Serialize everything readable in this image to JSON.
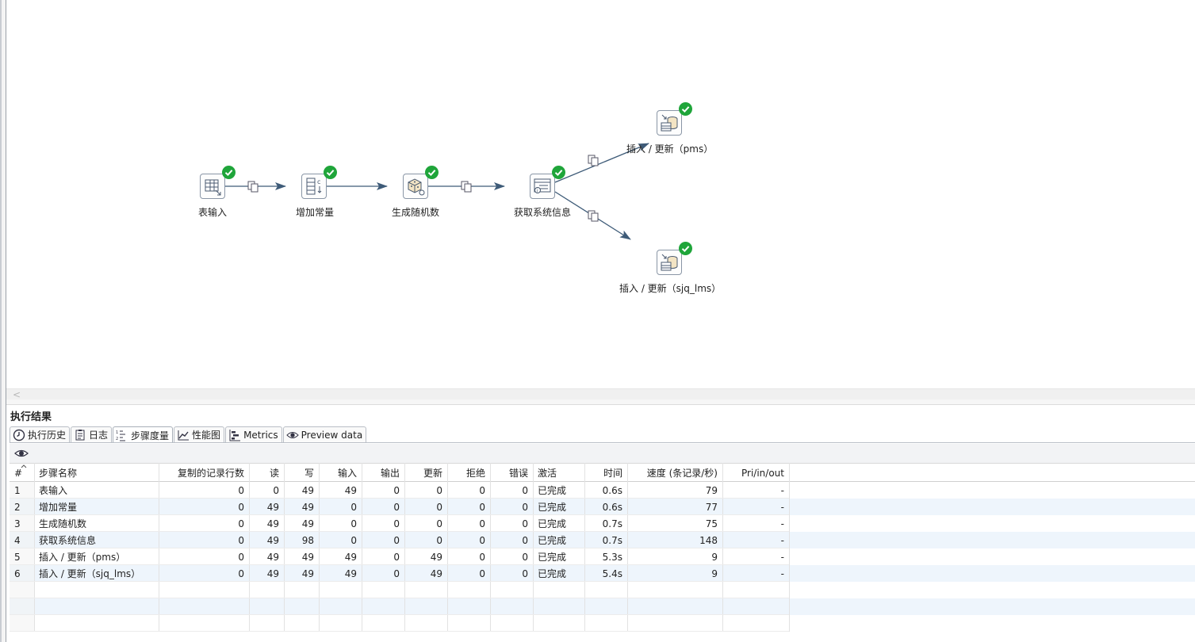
{
  "canvas": {
    "steps": [
      {
        "id": "table-input",
        "label": "表输入"
      },
      {
        "id": "add-constants",
        "label": "增加常量"
      },
      {
        "id": "generate-random",
        "label": "生成随机数"
      },
      {
        "id": "get-system-info",
        "label": "获取系统信息"
      },
      {
        "id": "insert-update-pms",
        "label": "插入 / 更新（pms）"
      },
      {
        "id": "insert-update-sjq",
        "label": "插入 / 更新（sjq_lms）"
      }
    ]
  },
  "scrollbar": {
    "left_arrow": "<"
  },
  "results": {
    "title": "执行结果",
    "tabs": [
      {
        "label": "执行历史",
        "icon": "clock-icon"
      },
      {
        "label": "日志",
        "icon": "log-icon"
      },
      {
        "label": "步骤度量",
        "icon": "list-numbered-icon",
        "active": true
      },
      {
        "label": "性能图",
        "icon": "chart-icon"
      },
      {
        "label": "Metrics",
        "icon": "metrics-icon"
      },
      {
        "label": "Preview data",
        "icon": "eye-icon"
      }
    ],
    "toolbar": {
      "icon": "eye-icon"
    },
    "table": {
      "columns": [
        "#",
        "步骤名称",
        "复制的记录行数",
        "读",
        "写",
        "输入",
        "输出",
        "更新",
        "拒绝",
        "错误",
        "激活",
        "时间",
        "速度 (条记录/秒)",
        "Pri/in/out"
      ],
      "rows": [
        [
          "1",
          "表输入",
          "0",
          "0",
          "49",
          "49",
          "0",
          "0",
          "0",
          "0",
          "已完成",
          "0.6s",
          "79",
          "-"
        ],
        [
          "2",
          "增加常量",
          "0",
          "49",
          "49",
          "0",
          "0",
          "0",
          "0",
          "0",
          "已完成",
          "0.6s",
          "77",
          "-"
        ],
        [
          "3",
          "生成随机数",
          "0",
          "49",
          "49",
          "0",
          "0",
          "0",
          "0",
          "0",
          "已完成",
          "0.7s",
          "75",
          "-"
        ],
        [
          "4",
          "获取系统信息",
          "0",
          "49",
          "98",
          "0",
          "0",
          "0",
          "0",
          "0",
          "已完成",
          "0.7s",
          "148",
          "-"
        ],
        [
          "5",
          "插入 / 更新（pms）",
          "0",
          "49",
          "49",
          "49",
          "0",
          "49",
          "0",
          "0",
          "已完成",
          "5.3s",
          "9",
          "-"
        ],
        [
          "6",
          "插入 / 更新（sjq_lms）",
          "0",
          "49",
          "49",
          "49",
          "0",
          "49",
          "0",
          "0",
          "已完成",
          "5.4s",
          "9",
          "-"
        ]
      ],
      "empty_rows": 3
    }
  }
}
